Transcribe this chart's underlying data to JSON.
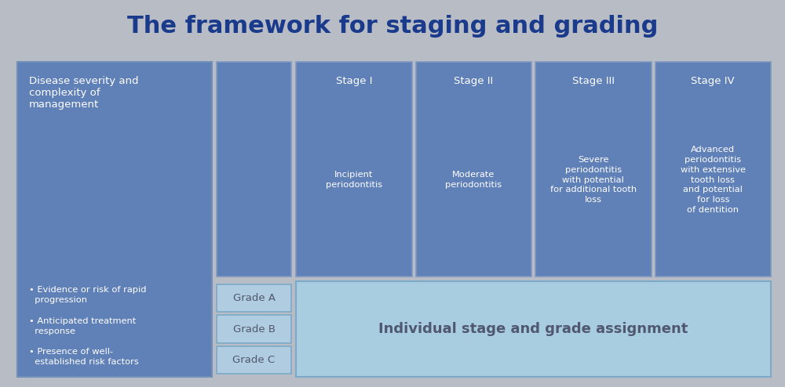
{
  "title": "The framework for staging and grading",
  "title_color": "#1a3a8c",
  "title_fontsize": 22,
  "bg_color": "#b8bcc4",
  "dark_blue": "#6080b8",
  "light_blue": "#a8cce0",
  "grade_box_facecolor": "#b0cce0",
  "grade_box_edgecolor": "#7aaac8",
  "stage_box_edgecolor": "#8098c0",
  "left_box_edgecolor": "#7090b8",
  "text_white": "#ffffff",
  "text_dark": "#505870",
  "assignment_text_color": "#505870",
  "left_col_text1": "Disease severity and\ncomplexity of\nmanagement",
  "left_col_text2": "• Evidence or risk of rapid\n  progression\n\n• Anticipated treatment\n  response\n\n• Presence of well-\n  established risk factors",
  "stage_labels": [
    "Stage I",
    "Stage II",
    "Stage III",
    "Stage IV"
  ],
  "stage_subtexts": [
    "Incipient\nperiodontitis",
    "Moderate\nperiodontitis",
    "Severe\nperiodontitis\nwith potential\nfor additional tooth\nloss",
    "Advanced\nperiodontitis\nwith extensive\ntooth loss\nand potential\nfor loss\nof dentition"
  ],
  "grade_labels": [
    "Grade A",
    "Grade B",
    "Grade C"
  ],
  "assignment_text": "Individual stage and grade assignment"
}
